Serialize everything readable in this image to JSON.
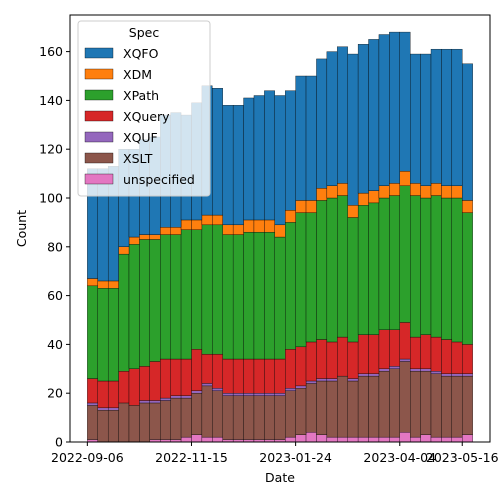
{
  "chart_data": {
    "type": "bar",
    "stacked": true,
    "xlabel": "Date",
    "ylabel": "Count",
    "ylim": [
      0,
      175
    ],
    "yticks": [
      0,
      20,
      40,
      60,
      80,
      100,
      120,
      140,
      160
    ],
    "xticks": [
      "2022-09-06",
      "2022-11-15",
      "2023-01-24",
      "2023-04-04",
      "2023-05-16"
    ],
    "x": [
      "2022-09-06",
      "2022-09-13",
      "2022-09-20",
      "2022-09-27",
      "2022-10-04",
      "2022-10-11",
      "2022-10-18",
      "2022-10-25",
      "2022-11-01",
      "2022-11-08",
      "2022-11-15",
      "2022-11-22",
      "2022-11-29",
      "2022-12-06",
      "2022-12-13",
      "2022-12-20",
      "2022-12-27",
      "2023-01-03",
      "2023-01-10",
      "2023-01-17",
      "2023-01-24",
      "2023-01-31",
      "2023-02-07",
      "2023-02-14",
      "2023-02-21",
      "2023-02-28",
      "2023-03-07",
      "2023-03-14",
      "2023-03-21",
      "2023-03-28",
      "2023-04-04",
      "2023-04-11",
      "2023-04-18",
      "2023-04-25",
      "2023-05-02",
      "2023-05-09",
      "2023-05-16"
    ],
    "legend_title": "Spec",
    "legend_placement": "upper-left",
    "series": [
      {
        "name": "unspecified",
        "color": "#e377c2",
        "values": [
          1,
          0,
          0,
          0,
          0,
          0,
          1,
          1,
          1,
          2,
          3,
          2,
          2,
          1,
          1,
          1,
          1,
          1,
          1,
          2,
          3,
          4,
          3,
          2,
          2,
          2,
          2,
          2,
          2,
          2,
          4,
          2,
          3,
          2,
          2,
          2,
          3
        ]
      },
      {
        "name": "XSLT",
        "color": "#8c564b",
        "values": [
          14,
          13,
          13,
          16,
          15,
          16,
          15,
          16,
          17,
          16,
          17,
          21,
          19,
          18,
          18,
          18,
          18,
          18,
          18,
          19,
          19,
          20,
          22,
          23,
          25,
          23,
          25,
          25,
          27,
          28,
          29,
          27,
          26,
          26,
          25,
          25,
          24
        ]
      },
      {
        "name": "XQUF",
        "color": "#9467bd",
        "values": [
          1,
          1,
          1,
          0,
          0,
          1,
          1,
          1,
          1,
          1,
          1,
          1,
          1,
          1,
          1,
          1,
          1,
          1,
          1,
          1,
          1,
          1,
          1,
          1,
          0,
          1,
          1,
          1,
          1,
          1,
          1,
          1,
          1,
          1,
          1,
          1,
          1
        ]
      },
      {
        "name": "XQuery",
        "color": "#d62728",
        "values": [
          10,
          11,
          11,
          13,
          15,
          14,
          16,
          16,
          15,
          15,
          17,
          12,
          14,
          14,
          14,
          14,
          14,
          14,
          14,
          16,
          16,
          16,
          16,
          15,
          16,
          15,
          16,
          16,
          16,
          15,
          15,
          13,
          14,
          14,
          14,
          13,
          12
        ]
      },
      {
        "name": "XPath",
        "color": "#2ca02c",
        "values": [
          38,
          38,
          38,
          48,
          51,
          52,
          50,
          51,
          51,
          53,
          49,
          53,
          53,
          51,
          51,
          52,
          52,
          52,
          50,
          52,
          55,
          53,
          57,
          59,
          58,
          51,
          53,
          54,
          54,
          55,
          56,
          58,
          56,
          58,
          58,
          59,
          54
        ]
      },
      {
        "name": "XDM",
        "color": "#ff7f0e",
        "values": [
          3,
          3,
          3,
          3,
          3,
          2,
          2,
          3,
          3,
          4,
          4,
          4,
          4,
          4,
          4,
          5,
          5,
          5,
          5,
          5,
          5,
          5,
          5,
          5,
          5,
          5,
          5,
          5,
          5,
          5,
          6,
          5,
          5,
          5,
          5,
          5,
          5
        ]
      },
      {
        "name": "XQFO",
        "color": "#1f77b4",
        "values": [
          45,
          46,
          47,
          40,
          36,
          39,
          40,
          46,
          47,
          43,
          48,
          53,
          52,
          49,
          49,
          50,
          51,
          53,
          53,
          49,
          51,
          51,
          53,
          55,
          56,
          62,
          61,
          62,
          62,
          62,
          57,
          53,
          54,
          55,
          56,
          56,
          56
        ]
      }
    ],
    "legend_order": [
      "XQFO",
      "XDM",
      "XPath",
      "XQuery",
      "XQUF",
      "XSLT",
      "unspecified"
    ]
  }
}
